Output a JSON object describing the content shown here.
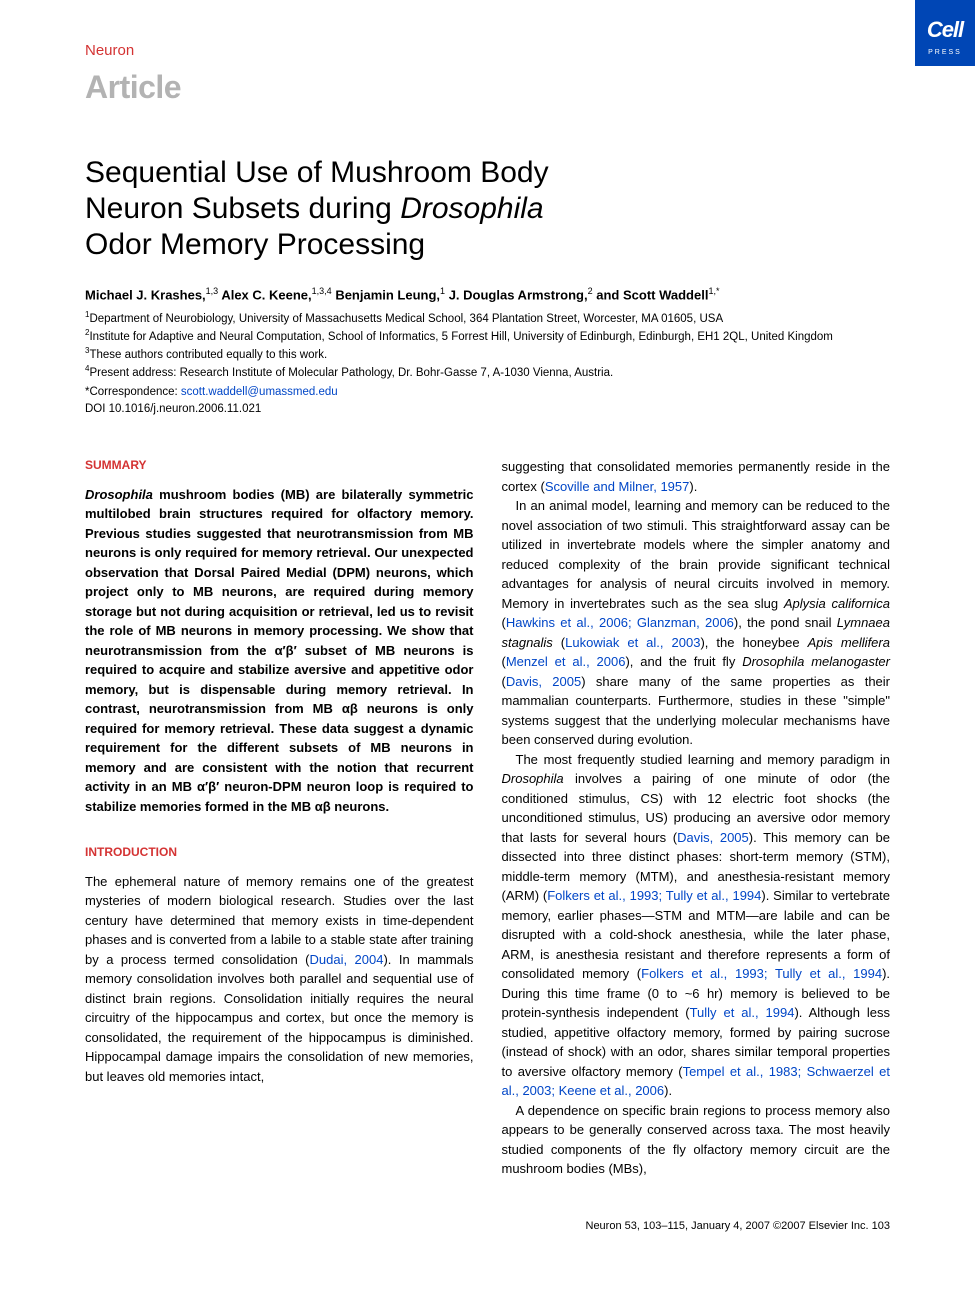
{
  "header": {
    "journal": "Neuron",
    "label": "Article",
    "badge_logo": "Cell",
    "badge_sub": "PRESS"
  },
  "title": {
    "line1": "Sequential Use of Mushroom Body",
    "line2_a": "Neuron Subsets during ",
    "line2_b": "Drosophila",
    "line3": "Odor Memory Processing"
  },
  "authors": {
    "a1": "Michael J. Krashes,",
    "s1": "1,3",
    "a2": " Alex C. Keene,",
    "s2": "1,3,4",
    "a3": " Benjamin Leung,",
    "s3": "1",
    "a4": " J. Douglas Armstrong,",
    "s4": "2",
    "a5": " and Scott Waddell",
    "s5": "1,*"
  },
  "affiliations": {
    "aff1_sup": "1",
    "aff1": "Department of Neurobiology, University of Massachusetts Medical School, 364 Plantation Street, Worcester, MA 01605, USA",
    "aff2_sup": "2",
    "aff2": "Institute for Adaptive and Neural Computation, School of Informatics, 5 Forrest Hill, University of Edinburgh, Edinburgh, EH1 2QL, United Kingdom",
    "aff3_sup": "3",
    "aff3": "These authors contributed equally to this work.",
    "aff4_sup": "4",
    "aff4": "Present address: Research Institute of Molecular Pathology, Dr. Bohr-Gasse 7, A-1030 Vienna, Austria."
  },
  "correspondence": {
    "label": "*Correspondence: ",
    "email": "scott.waddell@umassmed.edu"
  },
  "doi": "DOI 10.1016/j.neuron.2006.11.021",
  "summary": {
    "heading": "SUMMARY",
    "p1a": "Drosophila",
    "p1b": " mushroom bodies (MB) are bilaterally symmetric multilobed brain structures required for olfactory memory. Previous studies suggested that neurotransmission from MB neurons is only required for memory retrieval. Our unexpected observation that Dorsal Paired Medial (DPM) neurons, which project only to MB neurons, are required during memory storage but not during acquisition or retrieval, led us to revisit the role of MB neurons in memory processing. We show that neurotransmission from the α′β′ subset of MB neurons is required to acquire and stabilize aversive and appetitive odor memory, but is dispensable during memory retrieval. In contrast, neurotransmission from MB αβ neurons is only required for memory retrieval. These data suggest a dynamic requirement for the different subsets of MB neurons in memory and are consistent with the notion that recurrent activity in an MB α′β′ neuron-DPM neuron loop is required to stabilize memories formed in the MB αβ neurons."
  },
  "intro": {
    "heading": "INTRODUCTION",
    "p1a": "The ephemeral nature of memory remains one of the greatest mysteries of modern biological research. Studies over the last century have determined that memory exists in time-dependent phases and is converted from a labile to a stable state after training by a process termed consolidation (",
    "c1": "Dudai, 2004",
    "p1b": "). In mammals memory consolidation involves both parallel and sequential use of distinct brain regions. Consolidation initially requires the neural circuitry of the hippocampus and cortex, but once the memory is consolidated, the requirement of the hippocampus is diminished. Hippocampal damage impairs the consolidation of new memories, but leaves old memories intact,"
  },
  "col2": {
    "p1a": "suggesting that consolidated memories permanently reside in the cortex (",
    "c1": "Scoville and Milner, 1957",
    "p1b": ").",
    "p2a": "In an animal model, learning and memory can be reduced to the novel association of two stimuli. This straightforward assay can be utilized in invertebrate models where the simpler anatomy and reduced complexity of the brain provide significant technical advantages for analysis of neural circuits involved in memory. Memory in invertebrates such as the sea slug ",
    "p2i1": "Aplysia californica",
    "p2b": " (",
    "c2": "Hawkins et al., 2006; Glanzman, 2006",
    "p2c": "), the pond snail ",
    "p2i2": "Lymnaea stagnalis",
    "p2d": " (",
    "c3": "Lukowiak et al., 2003",
    "p2e": "), the honeybee ",
    "p2i3": "Apis mellifera",
    "p2f": " (",
    "c4": "Menzel et al., 2006",
    "p2g": "), and the fruit fly ",
    "p2i4": "Drosophila melanogaster",
    "p2h": " (",
    "c5": "Davis, 2005",
    "p2j": ") share many of the same properties as their mammalian counterparts. Furthermore, studies in these \"simple\" systems suggest that the underlying molecular mechanisms have been conserved during evolution.",
    "p3a": "The most frequently studied learning and memory paradigm in ",
    "p3i1": "Drosophila",
    "p3b": " involves a pairing of one minute of odor (the conditioned stimulus, CS) with 12 electric foot shocks (the unconditioned stimulus, US) producing an aversive odor memory that lasts for several hours (",
    "c6": "Davis, 2005",
    "p3c": "). This memory can be dissected into three distinct phases: short-term memory (STM), middle-term memory (MTM), and anesthesia-resistant memory (ARM) (",
    "c7": "Folkers et al., 1993; Tully et al., 1994",
    "p3d": "). Similar to vertebrate memory, earlier phases—STM and MTM—are labile and can be disrupted with a cold-shock anesthesia, while the later phase, ARM, is anesthesia resistant and therefore represents a form of consolidated memory (",
    "c8": "Folkers et al., 1993; Tully et al., 1994",
    "p3e": "). During this time frame (0 to ~6 hr) memory is believed to be protein-synthesis independent (",
    "c9": "Tully et al., 1994",
    "p3f": "). Although less studied, appetitive olfactory memory, formed by pairing sucrose (instead of shock) with an odor, shares similar temporal properties to aversive olfactory memory (",
    "c10": "Tempel et al., 1983; Schwaerzel et al., 2003; Keene et al., 2006",
    "p3g": ").",
    "p4": "A dependence on specific brain regions to process memory also appears to be generally conserved across taxa. The most heavily studied components of the fly olfactory memory circuit are the mushroom bodies (MBs),"
  },
  "footer": {
    "text": "Neuron 53, 103–115, January 4, 2007 ©2007 Elsevier Inc.  103"
  }
}
